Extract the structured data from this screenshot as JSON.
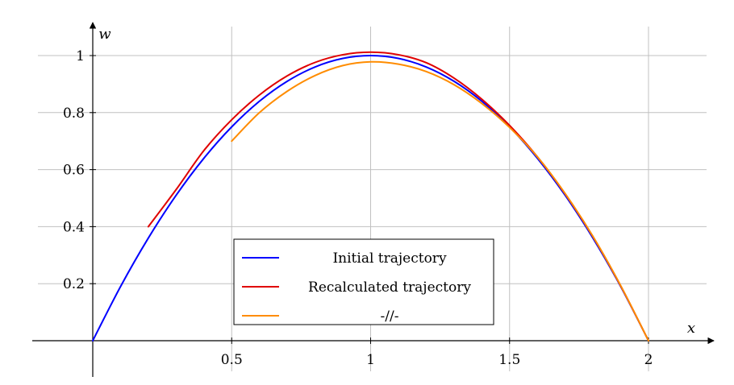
{
  "chart_data": {
    "type": "line",
    "xlabel": "x",
    "ylabel": "w",
    "xlim": [
      -0.2,
      2.2
    ],
    "ylim": [
      0,
      1.1
    ],
    "grid": true,
    "legend_position": "bottom-center",
    "x_ticks": [
      {
        "value": 0.5,
        "label": "0.5"
      },
      {
        "value": 1,
        "label": "1"
      },
      {
        "value": 1.5,
        "label": "1.5"
      },
      {
        "value": 2,
        "label": "2"
      }
    ],
    "y_ticks": [
      {
        "value": 0.2,
        "label": "0.2"
      },
      {
        "value": 0.4,
        "label": "0.4"
      },
      {
        "value": 0.6,
        "label": "0.6"
      },
      {
        "value": 0.8,
        "label": "0.8"
      },
      {
        "value": 1,
        "label": "1"
      }
    ],
    "series": [
      {
        "name": "Initial trajectory",
        "color": "#0000ff",
        "x": [
          0,
          0.1,
          0.2,
          0.3,
          0.4,
          0.5,
          0.6,
          0.7,
          0.8,
          0.9,
          1.0,
          1.1,
          1.2,
          1.3,
          1.4,
          1.5,
          1.6,
          1.7,
          1.8,
          1.9,
          2.0
        ],
        "y": [
          0,
          0.19,
          0.36,
          0.51,
          0.64,
          0.75,
          0.84,
          0.91,
          0.96,
          0.99,
          1.0,
          0.99,
          0.96,
          0.91,
          0.84,
          0.75,
          0.64,
          0.51,
          0.36,
          0.19,
          0
        ]
      },
      {
        "name": "Recalculated trajectory",
        "color": "#e00000",
        "x": [
          0.2,
          0.3,
          0.4,
          0.5,
          0.6,
          0.7,
          0.8,
          0.9,
          1.0,
          1.1,
          1.2,
          1.3,
          1.4,
          1.5,
          1.6,
          1.7,
          1.8,
          1.9,
          2.0
        ],
        "y": [
          0.4,
          0.53,
          0.667,
          0.775,
          0.862,
          0.929,
          0.976,
          1.003,
          1.012,
          1.003,
          0.975,
          0.921,
          0.847,
          0.755,
          0.645,
          0.515,
          0.365,
          0.192,
          0
        ]
      },
      {
        "name": "-//-",
        "color": "#ff8c00",
        "x": [
          0.5,
          0.6,
          0.7,
          0.8,
          0.9,
          1.0,
          1.1,
          1.2,
          1.3,
          1.4,
          1.5,
          1.6,
          1.7,
          1.8,
          1.9,
          2.0
        ],
        "y": [
          0.7,
          0.8,
          0.875,
          0.93,
          0.965,
          0.978,
          0.97,
          0.944,
          0.898,
          0.832,
          0.748,
          0.645,
          0.516,
          0.366,
          0.193,
          0
        ]
      }
    ]
  }
}
